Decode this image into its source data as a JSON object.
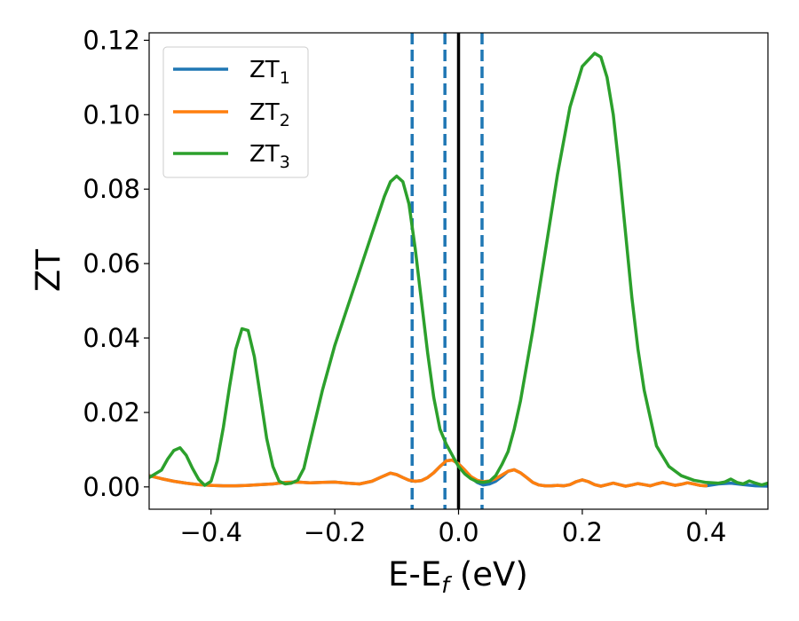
{
  "chart_data": {
    "type": "line",
    "title": "",
    "xlabel": "E-E",
    "xlabel_sub": "f",
    "xlabel_unit": " (eV)",
    "ylabel": "ZT",
    "xlim": [
      -0.5,
      0.5
    ],
    "ylim": [
      -0.006,
      0.122
    ],
    "xticks": [
      -0.4,
      -0.2,
      0.0,
      0.2,
      0.4
    ],
    "xtick_labels": [
      "−0.4",
      "−0.2",
      "0.0",
      "0.2",
      "0.4"
    ],
    "yticks": [
      0.0,
      0.02,
      0.04,
      0.06,
      0.08,
      0.1,
      0.12
    ],
    "ytick_labels": [
      "0.00",
      "0.02",
      "0.04",
      "0.06",
      "0.08",
      "0.10",
      "0.12"
    ],
    "grid": false,
    "legend_position": "top-left",
    "vertical_lines": [
      {
        "x": 0.0,
        "style": "solid",
        "color": "#000000"
      },
      {
        "x": -0.075,
        "style": "dashed",
        "color": "#1f77b4"
      },
      {
        "x": -0.022,
        "style": "dashed",
        "color": "#1f77b4"
      },
      {
        "x": 0.038,
        "style": "dashed",
        "color": "#1f77b4"
      }
    ],
    "series": [
      {
        "name": "ZT",
        "name_sub": "1",
        "color": "#1f77b4",
        "points": [
          [
            -0.5,
            0.003
          ],
          [
            -0.48,
            0.0022
          ],
          [
            -0.46,
            0.0015
          ],
          [
            -0.44,
            0.001
          ],
          [
            -0.42,
            0.0006
          ],
          [
            -0.4,
            0.0004
          ],
          [
            -0.38,
            0.0003
          ],
          [
            -0.36,
            0.0003
          ],
          [
            -0.34,
            0.0004
          ],
          [
            -0.32,
            0.0006
          ],
          [
            -0.3,
            0.0008
          ],
          [
            -0.28,
            0.0012
          ],
          [
            -0.26,
            0.0013
          ],
          [
            -0.24,
            0.0011
          ],
          [
            -0.22,
            0.0012
          ],
          [
            -0.2,
            0.0013
          ],
          [
            -0.18,
            0.001
          ],
          [
            -0.16,
            0.0008
          ],
          [
            -0.14,
            0.0015
          ],
          [
            -0.12,
            0.003
          ],
          [
            -0.11,
            0.0037
          ],
          [
            -0.1,
            0.0033
          ],
          [
            -0.09,
            0.0025
          ],
          [
            -0.08,
            0.0018
          ],
          [
            -0.07,
            0.0015
          ],
          [
            -0.06,
            0.0017
          ],
          [
            -0.05,
            0.0025
          ],
          [
            -0.04,
            0.0038
          ],
          [
            -0.03,
            0.0055
          ],
          [
            -0.02,
            0.007
          ],
          [
            -0.01,
            0.0072
          ],
          [
            0.0,
            0.0062
          ],
          [
            0.01,
            0.0045
          ],
          [
            0.02,
            0.0025
          ],
          [
            0.03,
            0.0012
          ],
          [
            0.04,
            0.0005
          ],
          [
            0.05,
            0.0008
          ],
          [
            0.06,
            0.0015
          ],
          [
            0.07,
            0.0028
          ],
          [
            0.08,
            0.0042
          ],
          [
            0.09,
            0.0046
          ],
          [
            0.1,
            0.0038
          ],
          [
            0.11,
            0.0025
          ],
          [
            0.12,
            0.0012
          ],
          [
            0.13,
            0.0005
          ],
          [
            0.14,
            0.0003
          ],
          [
            0.15,
            0.0003
          ],
          [
            0.16,
            0.0004
          ],
          [
            0.17,
            0.0003
          ],
          [
            0.18,
            0.0006
          ],
          [
            0.19,
            0.0014
          ],
          [
            0.2,
            0.0019
          ],
          [
            0.21,
            0.0014
          ],
          [
            0.22,
            0.0006
          ],
          [
            0.23,
            0.0002
          ],
          [
            0.24,
            0.0006
          ],
          [
            0.25,
            0.001
          ],
          [
            0.26,
            0.0006
          ],
          [
            0.27,
            0.0002
          ],
          [
            0.28,
            0.0005
          ],
          [
            0.29,
            0.0009
          ],
          [
            0.3,
            0.0006
          ],
          [
            0.31,
            0.0003
          ],
          [
            0.32,
            0.0008
          ],
          [
            0.33,
            0.0012
          ],
          [
            0.34,
            0.0008
          ],
          [
            0.35,
            0.0004
          ],
          [
            0.36,
            0.0007
          ],
          [
            0.37,
            0.0011
          ],
          [
            0.38,
            0.0008
          ],
          [
            0.39,
            0.0004
          ],
          [
            0.4,
            0.0003
          ],
          [
            0.42,
            0.0008
          ],
          [
            0.44,
            0.001
          ],
          [
            0.46,
            0.0006
          ],
          [
            0.48,
            0.0003
          ],
          [
            0.5,
            0.0002
          ]
        ]
      },
      {
        "name": "ZT",
        "name_sub": "2",
        "color": "#ff7f0e",
        "points": [
          [
            -0.5,
            0.003
          ],
          [
            -0.48,
            0.0022
          ],
          [
            -0.46,
            0.0015
          ],
          [
            -0.44,
            0.001
          ],
          [
            -0.42,
            0.0006
          ],
          [
            -0.4,
            0.0004
          ],
          [
            -0.38,
            0.0003
          ],
          [
            -0.36,
            0.0003
          ],
          [
            -0.34,
            0.0004
          ],
          [
            -0.32,
            0.0006
          ],
          [
            -0.3,
            0.0008
          ],
          [
            -0.28,
            0.0012
          ],
          [
            -0.26,
            0.0013
          ],
          [
            -0.24,
            0.0011
          ],
          [
            -0.22,
            0.0012
          ],
          [
            -0.2,
            0.0013
          ],
          [
            -0.18,
            0.001
          ],
          [
            -0.16,
            0.0008
          ],
          [
            -0.14,
            0.0015
          ],
          [
            -0.12,
            0.003
          ],
          [
            -0.11,
            0.0037
          ],
          [
            -0.1,
            0.0033
          ],
          [
            -0.09,
            0.0025
          ],
          [
            -0.08,
            0.0018
          ],
          [
            -0.07,
            0.0015
          ],
          [
            -0.06,
            0.0017
          ],
          [
            -0.05,
            0.0025
          ],
          [
            -0.04,
            0.0038
          ],
          [
            -0.03,
            0.0055
          ],
          [
            -0.02,
            0.007
          ],
          [
            -0.01,
            0.0072
          ],
          [
            0.0,
            0.0062
          ],
          [
            0.01,
            0.0045
          ],
          [
            0.02,
            0.0028
          ],
          [
            0.03,
            0.0018
          ],
          [
            0.04,
            0.0014
          ],
          [
            0.05,
            0.0016
          ],
          [
            0.06,
            0.0022
          ],
          [
            0.07,
            0.0032
          ],
          [
            0.08,
            0.0042
          ],
          [
            0.09,
            0.0046
          ],
          [
            0.1,
            0.0038
          ],
          [
            0.11,
            0.0025
          ],
          [
            0.12,
            0.0012
          ],
          [
            0.13,
            0.0005
          ],
          [
            0.14,
            0.0003
          ],
          [
            0.15,
            0.0003
          ],
          [
            0.16,
            0.0004
          ],
          [
            0.17,
            0.0003
          ],
          [
            0.18,
            0.0006
          ],
          [
            0.19,
            0.0014
          ],
          [
            0.2,
            0.0019
          ],
          [
            0.21,
            0.0014
          ],
          [
            0.22,
            0.0006
          ],
          [
            0.23,
            0.0002
          ],
          [
            0.24,
            0.0006
          ],
          [
            0.25,
            0.001
          ],
          [
            0.26,
            0.0006
          ],
          [
            0.27,
            0.0002
          ],
          [
            0.28,
            0.0005
          ],
          [
            0.29,
            0.0009
          ],
          [
            0.3,
            0.0006
          ],
          [
            0.31,
            0.0003
          ],
          [
            0.32,
            0.0008
          ],
          [
            0.33,
            0.0012
          ],
          [
            0.34,
            0.0008
          ],
          [
            0.35,
            0.0004
          ],
          [
            0.36,
            0.0007
          ],
          [
            0.37,
            0.0011
          ],
          [
            0.38,
            0.0008
          ],
          [
            0.39,
            0.0004
          ],
          [
            0.4,
            0.0003
          ]
        ]
      },
      {
        "name": "ZT",
        "name_sub": "3",
        "color": "#2ca02c",
        "points": [
          [
            -0.5,
            0.0025
          ],
          [
            -0.48,
            0.0045
          ],
          [
            -0.47,
            0.0075
          ],
          [
            -0.46,
            0.0098
          ],
          [
            -0.45,
            0.0105
          ],
          [
            -0.44,
            0.0085
          ],
          [
            -0.43,
            0.005
          ],
          [
            -0.42,
            0.002
          ],
          [
            -0.41,
            0.0004
          ],
          [
            -0.4,
            0.0015
          ],
          [
            -0.39,
            0.007
          ],
          [
            -0.38,
            0.016
          ],
          [
            -0.37,
            0.027
          ],
          [
            -0.36,
            0.037
          ],
          [
            -0.35,
            0.0425
          ],
          [
            -0.34,
            0.042
          ],
          [
            -0.33,
            0.035
          ],
          [
            -0.32,
            0.024
          ],
          [
            -0.31,
            0.013
          ],
          [
            -0.3,
            0.0055
          ],
          [
            -0.29,
            0.0015
          ],
          [
            -0.28,
            0.0008
          ],
          [
            -0.27,
            0.001
          ],
          [
            -0.26,
            0.0018
          ],
          [
            -0.25,
            0.005
          ],
          [
            -0.24,
            0.012
          ],
          [
            -0.22,
            0.026
          ],
          [
            -0.2,
            0.038
          ],
          [
            -0.18,
            0.048
          ],
          [
            -0.16,
            0.058
          ],
          [
            -0.14,
            0.068
          ],
          [
            -0.13,
            0.073
          ],
          [
            -0.12,
            0.078
          ],
          [
            -0.11,
            0.082
          ],
          [
            -0.1,
            0.0835
          ],
          [
            -0.09,
            0.082
          ],
          [
            -0.08,
            0.076
          ],
          [
            -0.07,
            0.064
          ],
          [
            -0.06,
            0.05
          ],
          [
            -0.05,
            0.036
          ],
          [
            -0.04,
            0.024
          ],
          [
            -0.03,
            0.0155
          ],
          [
            -0.02,
            0.0115
          ],
          [
            -0.01,
            0.0085
          ],
          [
            0.0,
            0.0055
          ],
          [
            0.01,
            0.0035
          ],
          [
            0.02,
            0.0022
          ],
          [
            0.03,
            0.0014
          ],
          [
            0.04,
            0.0012
          ],
          [
            0.05,
            0.0015
          ],
          [
            0.06,
            0.003
          ],
          [
            0.07,
            0.006
          ],
          [
            0.08,
            0.0095
          ],
          [
            0.09,
            0.0155
          ],
          [
            0.1,
            0.023
          ],
          [
            0.12,
            0.042
          ],
          [
            0.14,
            0.063
          ],
          [
            0.16,
            0.084
          ],
          [
            0.18,
            0.102
          ],
          [
            0.2,
            0.113
          ],
          [
            0.22,
            0.1165
          ],
          [
            0.23,
            0.1155
          ],
          [
            0.24,
            0.11
          ],
          [
            0.25,
            0.1
          ],
          [
            0.26,
            0.085
          ],
          [
            0.27,
            0.068
          ],
          [
            0.28,
            0.051
          ],
          [
            0.29,
            0.037
          ],
          [
            0.3,
            0.026
          ],
          [
            0.32,
            0.011
          ],
          [
            0.34,
            0.0055
          ],
          [
            0.36,
            0.003
          ],
          [
            0.38,
            0.0018
          ],
          [
            0.4,
            0.0012
          ],
          [
            0.42,
            0.001
          ],
          [
            0.43,
            0.0013
          ],
          [
            0.44,
            0.0021
          ],
          [
            0.45,
            0.0012
          ],
          [
            0.46,
            0.0008
          ],
          [
            0.47,
            0.0016
          ],
          [
            0.48,
            0.001
          ],
          [
            0.49,
            0.0005
          ],
          [
            0.5,
            0.001
          ]
        ]
      }
    ]
  }
}
